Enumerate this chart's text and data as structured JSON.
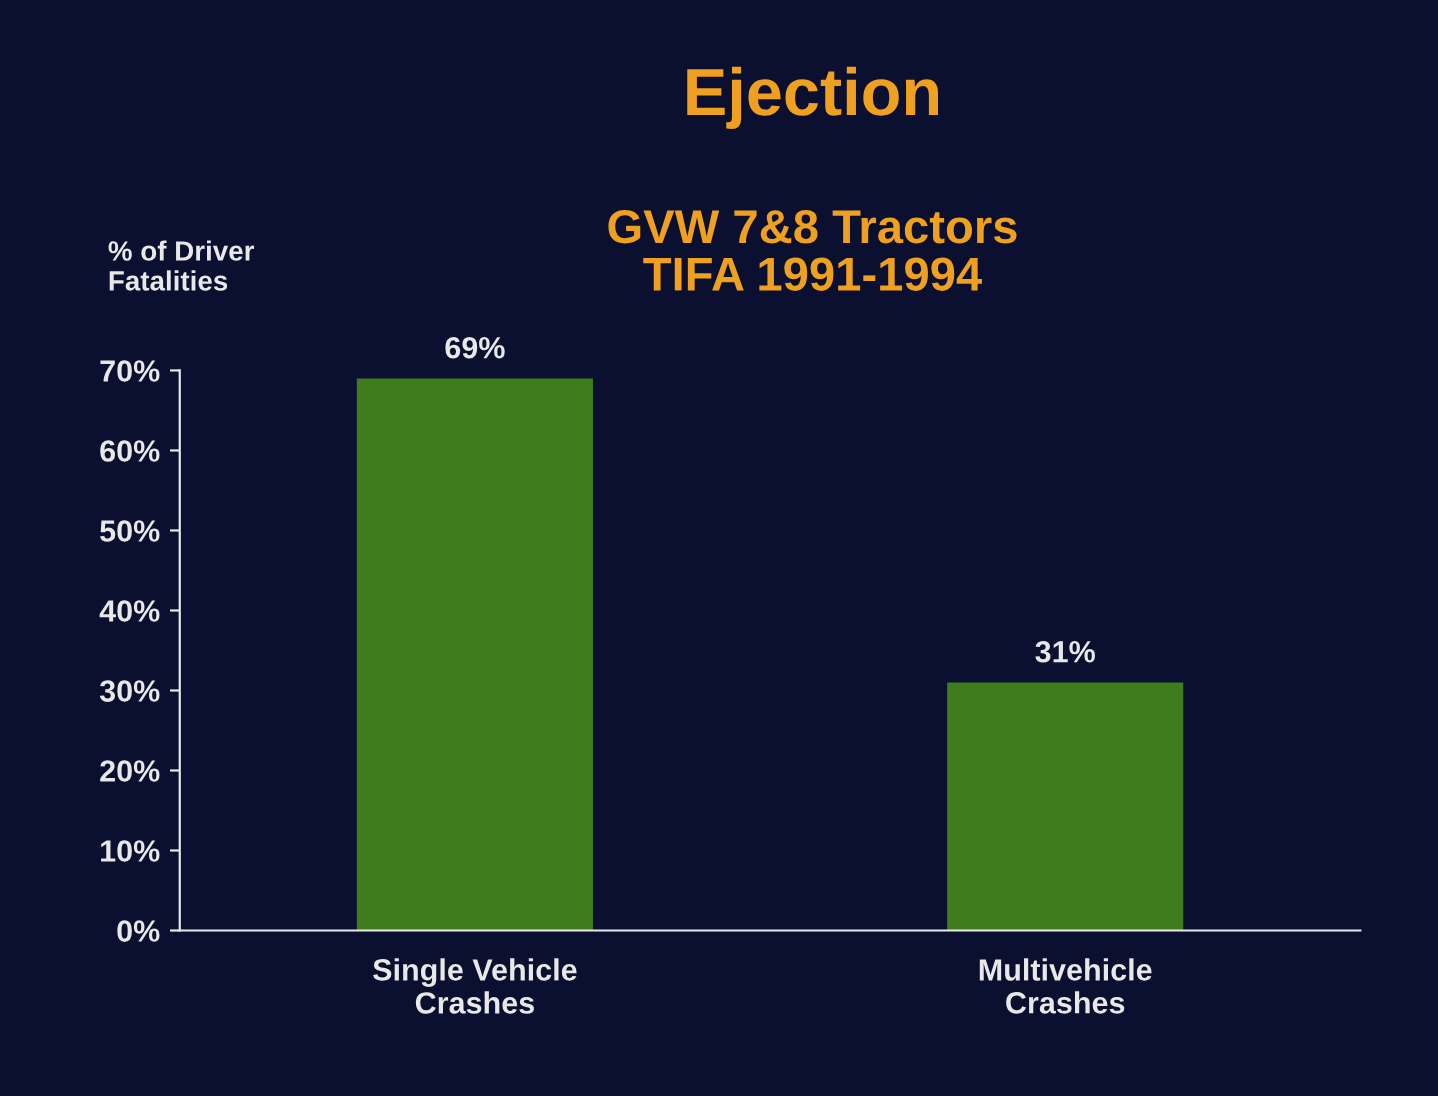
{
  "chart_data": {
    "type": "bar",
    "title": "Ejection",
    "subtitle": "GVW 7&8 Tractors\nTIFA 1991-1994",
    "ylabel": "% of Driver\nFatalities",
    "categories": [
      "Single Vehicle\nCrashes",
      "Multivehicle\nCrashes"
    ],
    "values": [
      69,
      31
    ],
    "value_labels": [
      "69%",
      "31%"
    ],
    "color": "#3f7d1c",
    "ylim": [
      0,
      70
    ],
    "yticks": [
      {
        "value": 0,
        "label": "0%"
      },
      {
        "value": 10,
        "label": "10%"
      },
      {
        "value": 20,
        "label": "20%"
      },
      {
        "value": 30,
        "label": "30%"
      },
      {
        "value": 40,
        "label": "40%"
      },
      {
        "value": 50,
        "label": "50%"
      },
      {
        "value": 60,
        "label": "60%"
      },
      {
        "value": 70,
        "label": "70%"
      }
    ],
    "grid": false,
    "legend": false
  }
}
